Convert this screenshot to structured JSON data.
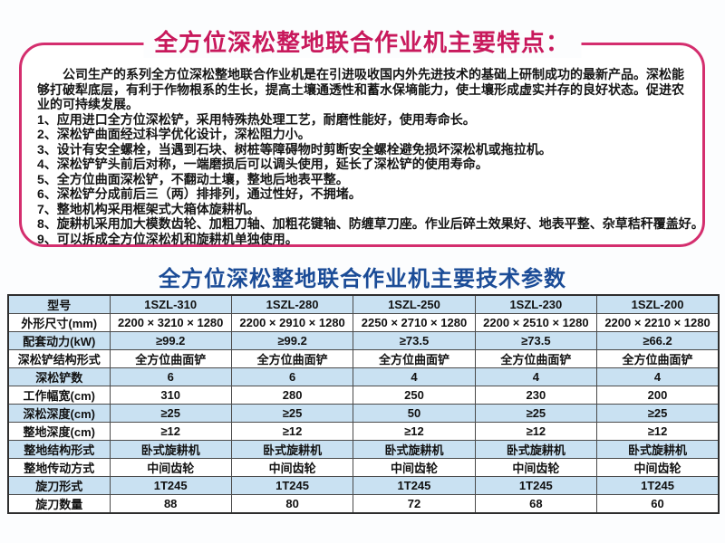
{
  "features": {
    "title": "全方位深松整地联合作业机主要特点：",
    "intro": "公司生产的系列全方位深松整地联合作业机是在引进吸收国内外先进技术的基础上研制成功的最新产品。深松能够打破犁底层，有利于作物根系的生长，提高土壤通透性和蓄水保墒能力，使土壤形成虚实并存的良好状态。促进农业的可持续发展。",
    "items": [
      "1、应用进口全方位深松铲，采用特殊热处理工艺，耐磨性能好，使用寿命长。",
      "2、深松铲曲面经过科学优化设计，深松阻力小。",
      "3、设计有安全螺栓，当遇到石块、树桩等障碍物时剪断安全螺栓避免损坏深松机或拖拉机。",
      "4、深松铲铲头前后对称，一端磨损后可以调头使用，延长了深松铲的使用寿命。",
      "5、全方位曲面深松铲，不翻动土壤，整地后地表平整。",
      "6、深松铲分成前后三（两）排排列，通过性好，不拥堵。",
      "7、整地机构采用框架式大箱体旋耕机。",
      "8、旋耕机采用加大模数齿轮、加粗刀轴、加粗花键轴、防缠草刀座。作业后碎土效果好、地表平整、杂草秸秆覆盖好。",
      "9、可以拆成全方位深松机和旋耕机单独使用。"
    ]
  },
  "params": {
    "title": "全方位深松整地联合作业机主要技术参数",
    "table": {
      "col_header_label": "型号",
      "models": [
        "1SZL-310",
        "1SZL-280",
        "1SZL-250",
        "1SZL-230",
        "1SZL-200"
      ],
      "rows": [
        {
          "label": "外形尺寸(mm)",
          "values": [
            "2200 × 3210 × 1280",
            "2200 × 2910 × 1280",
            "2250 × 2710 × 1280",
            "2200 × 2510 × 1280",
            "2200 × 2210 × 1280"
          ]
        },
        {
          "label": "配套动力(kW)",
          "values": [
            "≥99.2",
            "≥99.2",
            "≥73.5",
            "≥73.5",
            "≥66.2"
          ]
        },
        {
          "label": "深松铲结构形式",
          "values": [
            "全方位曲面铲",
            "全方位曲面铲",
            "全方位曲面铲",
            "全方位曲面铲",
            "全方位曲面铲"
          ]
        },
        {
          "label": "深松铲数",
          "values": [
            "6",
            "6",
            "4",
            "4",
            "4"
          ]
        },
        {
          "label": "工作幅宽(cm)",
          "values": [
            "310",
            "280",
            "250",
            "230",
            "200"
          ]
        },
        {
          "label": "深松深度(cm)",
          "values": [
            "≥25",
            "≥25",
            "50",
            "≥25",
            "≥25"
          ]
        },
        {
          "label": "整地深度(cm)",
          "values": [
            "≥12",
            "≥12",
            "≥12",
            "≥12",
            "≥12"
          ]
        },
        {
          "label": "整地结构形式",
          "values": [
            "卧式旋耕机",
            "卧式旋耕机",
            "卧式旋耕机",
            "卧式旋耕机",
            "卧式旋耕机"
          ]
        },
        {
          "label": "整地传动方式",
          "values": [
            "中间齿轮",
            "中间齿轮",
            "中间齿轮",
            "中间齿轮",
            "中间齿轮"
          ]
        },
        {
          "label": "旋刀形式",
          "values": [
            "1T245",
            "1T245",
            "1T245",
            "1T245",
            "1T245"
          ]
        },
        {
          "label": "旋刀数量",
          "values": [
            "88",
            "80",
            "72",
            "68",
            "60"
          ]
        }
      ]
    }
  },
  "colors": {
    "accent_pink": "#d42e6e",
    "title_red": "#c8195c",
    "title_blue": "#1b4c97",
    "row_blue": "#c9e1f2"
  }
}
